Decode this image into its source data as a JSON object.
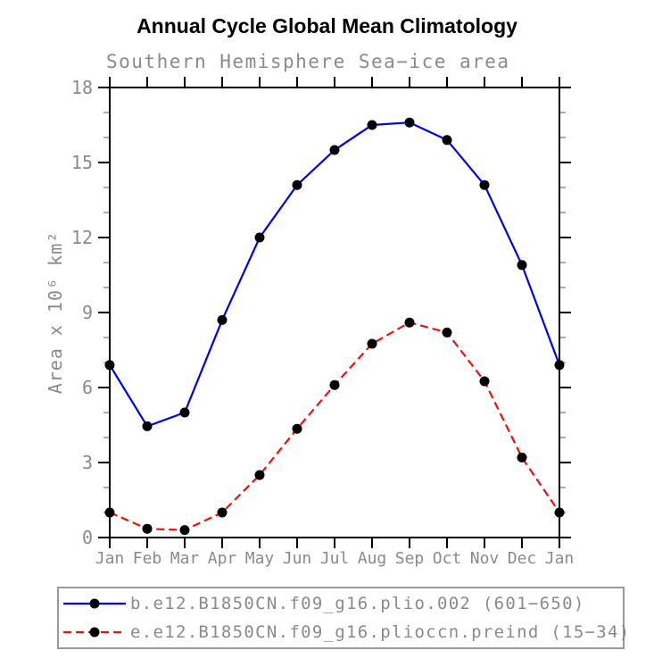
{
  "header": {
    "title": "Annual Cycle Global Mean Climatology",
    "subtitle": "Southern Hemisphere Sea−ice area"
  },
  "chart_data": {
    "type": "line",
    "title": "Annual Cycle Global Mean Climatology",
    "subtitle": "Southern Hemisphere Sea−ice area",
    "xlabel": "",
    "ylabel": "Area x 10⁶ km²",
    "categories": [
      "Jan",
      "Feb",
      "Mar",
      "Apr",
      "May",
      "Jun",
      "Jul",
      "Aug",
      "Sep",
      "Oct",
      "Nov",
      "Dec",
      "Jan"
    ],
    "ylim": [
      0,
      18
    ],
    "ytick_major": [
      0,
      3,
      6,
      9,
      12,
      15,
      18
    ],
    "ytick_minor_step": 1,
    "grid": false,
    "legend_position": "bottom",
    "frame_ticks": "all-sides-outward",
    "series": [
      {
        "name": "b.e12.B1850CN.f09_g16.plio.002 (601−650)",
        "color": "#0000ee",
        "style": "solid",
        "marker": "circle",
        "marker_color": "#000000",
        "values": [
          6.9,
          4.45,
          5.0,
          8.7,
          12.0,
          14.1,
          15.5,
          16.5,
          16.6,
          15.9,
          14.1,
          10.9,
          6.9
        ]
      },
      {
        "name": "e.e12.B1850CN.f09_g16.plioccn.preind (15−34)",
        "color": "#ee1010",
        "style": "dashed",
        "marker": "circle",
        "marker_color": "#000000",
        "values": [
          1.0,
          0.35,
          0.3,
          1.0,
          2.5,
          4.35,
          6.1,
          7.75,
          8.6,
          8.2,
          6.25,
          3.2,
          1.0
        ]
      }
    ],
    "colors": {
      "axis": "#000000",
      "minor_tick": "#999999",
      "label_text": "#8a8a8a",
      "legend_border": "#999999"
    }
  }
}
